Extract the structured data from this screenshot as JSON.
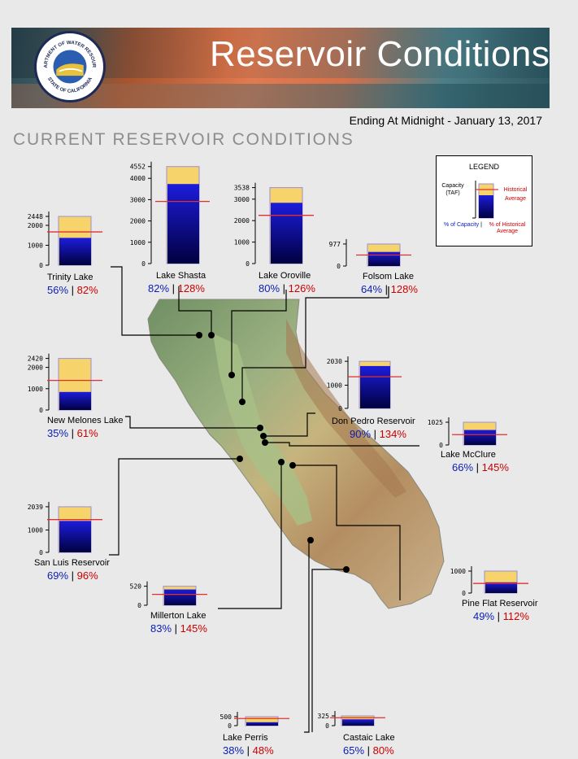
{
  "header": {
    "title": "Reservoir Conditions",
    "seal_text_top": "DEPARTMENT OF WATER RESOURCES",
    "seal_text_bottom": "STATE OF CALIFORNIA"
  },
  "subtitle": "Ending At Midnight - January 13, 2017",
  "section_title": "CURRENT RESERVOIR CONDITIONS",
  "legend": {
    "title": "LEGEND",
    "capacity_label": "Capacity (TAF)",
    "historical_label": "Historical Average",
    "pct_capacity_label": "% of Capacity",
    "separator": "|",
    "pct_historical_label": "% of Historical Average"
  },
  "colors": {
    "capacity_fill": "#f6d36b",
    "storage_top": "#1c1cdc",
    "storage_bottom": "#000040",
    "historical_line": "#e03030",
    "percent_capacity": "#0a1eb4",
    "percent_historical": "#cc0000",
    "bar_outline": "#9c8fd6"
  },
  "chart_data": [
    {
      "type": "bar",
      "name": "Trinity Lake",
      "capacity_taf": 2448,
      "ticks": [
        "2448",
        "2000",
        "1000",
        "0"
      ],
      "tick_values": [
        2448,
        2000,
        1000,
        0
      ],
      "storage_pct": 56,
      "historical_pct": 82,
      "pct_capacity_text": "56%",
      "pct_historical_text": "82%"
    },
    {
      "type": "bar",
      "name": "Lake Shasta",
      "capacity_taf": 4552,
      "ticks": [
        "4552",
        "4000",
        "3000",
        "2000",
        "1000",
        "0"
      ],
      "tick_values": [
        4552,
        4000,
        3000,
        2000,
        1000,
        0
      ],
      "storage_pct": 82,
      "historical_pct": 128,
      "pct_capacity_text": "82%",
      "pct_historical_text": "128%"
    },
    {
      "type": "bar",
      "name": "Lake Oroville",
      "capacity_taf": 3538,
      "ticks": [
        "3538",
        "3000",
        "2000",
        "1000",
        "0"
      ],
      "tick_values": [
        3538,
        3000,
        2000,
        1000,
        0
      ],
      "storage_pct": 80,
      "historical_pct": 126,
      "pct_capacity_text": "80%",
      "pct_historical_text": "126%"
    },
    {
      "type": "bar",
      "name": "Folsom Lake",
      "capacity_taf": 977,
      "ticks": [
        "977",
        "0"
      ],
      "tick_values": [
        977,
        0
      ],
      "storage_pct": 64,
      "historical_pct": 128,
      "pct_capacity_text": "64%",
      "pct_historical_text": "128%"
    },
    {
      "type": "bar",
      "name": "New Melones Lake",
      "capacity_taf": 2420,
      "ticks": [
        "2420",
        "2000",
        "1000",
        "0"
      ],
      "tick_values": [
        2420,
        2000,
        1000,
        0
      ],
      "storage_pct": 35,
      "historical_pct": 61,
      "pct_capacity_text": "35%",
      "pct_historical_text": "61%"
    },
    {
      "type": "bar",
      "name": "Don Pedro Reservoir",
      "capacity_taf": 2030,
      "ticks": [
        "2030",
        "1000",
        "0"
      ],
      "tick_values": [
        2030,
        1000,
        0
      ],
      "storage_pct": 90,
      "historical_pct": 134,
      "pct_capacity_text": "90%",
      "pct_historical_text": "134%"
    },
    {
      "type": "bar",
      "name": "Lake McClure",
      "capacity_taf": 1025,
      "ticks": [
        "1025",
        "0"
      ],
      "tick_values": [
        1025,
        0
      ],
      "storage_pct": 66,
      "historical_pct": 145,
      "pct_capacity_text": "66%",
      "pct_historical_text": "145%"
    },
    {
      "type": "bar",
      "name": "San Luis Reservoir",
      "capacity_taf": 2039,
      "ticks": [
        "2039",
        "1000",
        "0"
      ],
      "tick_values": [
        2039,
        1000,
        0
      ],
      "storage_pct": 69,
      "historical_pct": 96,
      "pct_capacity_text": "69%",
      "pct_historical_text": "96%"
    },
    {
      "type": "bar",
      "name": "Millerton Lake",
      "capacity_taf": 520,
      "ticks": [
        "520",
        "0"
      ],
      "tick_values": [
        520,
        0
      ],
      "storage_pct": 83,
      "historical_pct": 145,
      "pct_capacity_text": "83%",
      "pct_historical_text": "145%"
    },
    {
      "type": "bar",
      "name": "Pine Flat Reservoir",
      "capacity_taf": 1000,
      "ticks": [
        "1000",
        "0"
      ],
      "tick_values": [
        1000,
        0
      ],
      "storage_pct": 49,
      "historical_pct": 112,
      "pct_capacity_text": "49%",
      "pct_historical_text": "112%"
    },
    {
      "type": "bar",
      "name": "Lake Perris",
      "capacity_taf": 500,
      "ticks": [
        "500",
        "0"
      ],
      "tick_values": [
        500,
        0
      ],
      "storage_pct": 38,
      "historical_pct": 48,
      "pct_capacity_text": "38%",
      "pct_historical_text": "48%"
    },
    {
      "type": "bar",
      "name": "Castaic Lake",
      "capacity_taf": 325,
      "ticks": [
        "325",
        "0"
      ],
      "tick_values": [
        325,
        0
      ],
      "storage_pct": 65,
      "historical_pct": 80,
      "pct_capacity_text": "65%",
      "pct_historical_text": "80%"
    }
  ]
}
